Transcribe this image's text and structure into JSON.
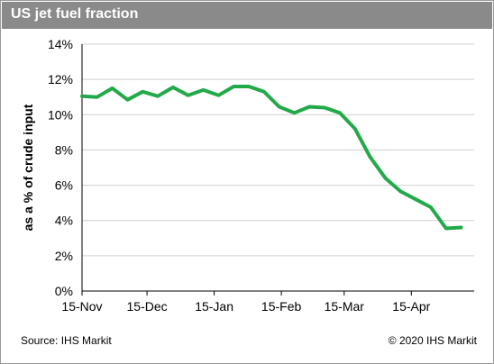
{
  "title": "US jet fuel fraction",
  "source": "Source: IHS Markit",
  "copyright": "© 2020 IHS Markit",
  "colors": {
    "line": "#22aa4a",
    "grid": "#d0d0d0",
    "header": "#8a8a8a"
  },
  "chart_data": {
    "type": "line",
    "title": "US jet fuel fraction",
    "xlabel": "",
    "ylabel": "as a % of crude input",
    "ylim": [
      0,
      14
    ],
    "y_ticks": [
      "0%",
      "2%",
      "4%",
      "6%",
      "8%",
      "10%",
      "12%",
      "14%"
    ],
    "x_ticks": [
      "15-Nov",
      "15-Dec",
      "15-Jan",
      "15-Feb",
      "15-Mar",
      "15-Apr"
    ],
    "grid": true,
    "series": [
      {
        "values": [
          [
            "2019-11-15",
            11.05
          ],
          [
            "2019-11-22",
            11.0
          ],
          [
            "2019-11-29",
            11.5
          ],
          [
            "2019-12-06",
            10.85
          ],
          [
            "2019-12-13",
            11.3
          ],
          [
            "2019-12-20",
            11.05
          ],
          [
            "2019-12-27",
            11.55
          ],
          [
            "2020-01-03",
            11.1
          ],
          [
            "2020-01-10",
            11.4
          ],
          [
            "2020-01-17",
            11.1
          ],
          [
            "2020-01-24",
            11.6
          ],
          [
            "2020-01-31",
            11.6
          ],
          [
            "2020-02-07",
            11.3
          ],
          [
            "2020-02-14",
            10.45
          ],
          [
            "2020-02-21",
            10.1
          ],
          [
            "2020-02-28",
            10.45
          ],
          [
            "2020-03-06",
            10.4
          ],
          [
            "2020-03-13",
            10.1
          ],
          [
            "2020-03-20",
            9.2
          ],
          [
            "2020-03-27",
            7.6
          ],
          [
            "2020-04-03",
            6.4
          ],
          [
            "2020-04-10",
            5.65
          ],
          [
            "2020-04-17",
            5.2
          ],
          [
            "2020-04-24",
            4.75
          ],
          [
            "2020-05-01",
            3.55
          ],
          [
            "2020-05-08",
            3.6
          ]
        ]
      }
    ]
  }
}
